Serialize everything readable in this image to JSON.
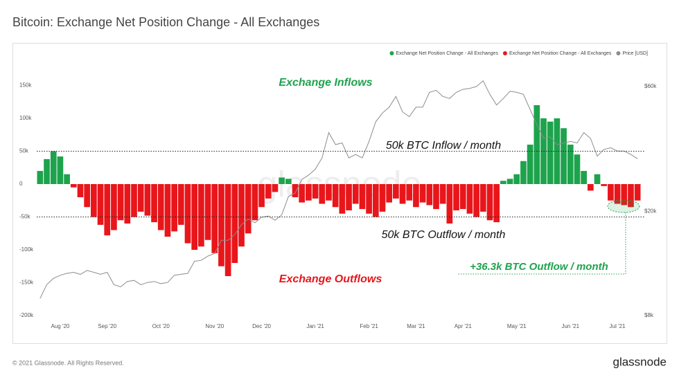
{
  "chart_data": {
    "type": "bar",
    "title": "Bitcoin: Exchange Net Position Change - All Exchanges",
    "watermark": "glassnode",
    "footer": "© 2021 Glassnode. All Rights Reserved.",
    "brand": "glassnode",
    "categories": [
      null,
      null,
      null,
      "Aug '20",
      null,
      null,
      null,
      null,
      null,
      null,
      "Sep '20",
      null,
      null,
      null,
      null,
      null,
      null,
      null,
      "Oct '20",
      null,
      null,
      null,
      null,
      null,
      null,
      null,
      "Nov '20",
      null,
      null,
      null,
      null,
      null,
      null,
      "Dec '20",
      null,
      null,
      null,
      null,
      null,
      null,
      null,
      "Jan '21",
      null,
      null,
      null,
      null,
      null,
      null,
      null,
      "Feb '21",
      null,
      null,
      null,
      null,
      null,
      null,
      "Mar '21",
      null,
      null,
      null,
      null,
      null,
      null,
      "Apr '21",
      null,
      null,
      null,
      null,
      null,
      null,
      null,
      "May '21",
      null,
      null,
      null,
      null,
      null,
      null,
      null,
      "Jun '21",
      null,
      null,
      null,
      null,
      null,
      null,
      "Jul '21",
      null,
      null,
      null
    ],
    "series": [
      {
        "name": "Exchange Net Position Change - All Exchanges",
        "color": "#1ea34d",
        "values": [
          20000,
          38000,
          50000,
          42000,
          15000,
          null,
          null,
          null,
          null,
          null,
          null,
          null,
          null,
          null,
          null,
          null,
          null,
          null,
          null,
          null,
          null,
          null,
          null,
          null,
          null,
          null,
          null,
          null,
          null,
          null,
          null,
          null,
          null,
          null,
          null,
          null,
          10000,
          8000,
          null,
          null,
          null,
          null,
          null,
          null,
          null,
          null,
          null,
          null,
          null,
          null,
          null,
          null,
          null,
          null,
          null,
          null,
          null,
          null,
          null,
          null,
          null,
          null,
          null,
          null,
          null,
          null,
          null,
          null,
          null,
          5000,
          8000,
          15000,
          35000,
          60000,
          120000,
          100000,
          95000,
          100000,
          85000,
          60000,
          45000,
          20000,
          null,
          15000,
          null,
          null,
          null,
          null,
          null,
          null
        ]
      },
      {
        "name": "Exchange Net Position Change - All Exchanges",
        "color": "#e8161b",
        "values": [
          null,
          null,
          null,
          null,
          null,
          -5000,
          -20000,
          -35000,
          -50000,
          -62000,
          -78000,
          -70000,
          -55000,
          -60000,
          -50000,
          -42000,
          -48000,
          -58000,
          -70000,
          -80000,
          -72000,
          -62000,
          -90000,
          -100000,
          -95000,
          -85000,
          -105000,
          -125000,
          -140000,
          -120000,
          -95000,
          -75000,
          -55000,
          -35000,
          -22000,
          -12000,
          null,
          null,
          -20000,
          -28000,
          -25000,
          -22000,
          -30000,
          -25000,
          -35000,
          -45000,
          -40000,
          -30000,
          -38000,
          -45000,
          -50000,
          -42000,
          -28000,
          -22000,
          -30000,
          -25000,
          -35000,
          -28000,
          -32000,
          -38000,
          -30000,
          -60000,
          -40000,
          -38000,
          -45000,
          -50000,
          -42000,
          -55000,
          -58000,
          null,
          null,
          null,
          null,
          null,
          null,
          null,
          null,
          null,
          null,
          null,
          null,
          null,
          -10000,
          null,
          -3000,
          -25000,
          -30000,
          -32000,
          -35000,
          -25000
        ]
      },
      {
        "name": "Price [USD]",
        "color": "#8c8c8c",
        "type": "line",
        "axis": "y2",
        "values": [
          9300,
          10500,
          11100,
          11400,
          11600,
          11700,
          11500,
          11900,
          11700,
          11500,
          11700,
          10500,
          10300,
          10800,
          10900,
          10500,
          10700,
          10800,
          10600,
          10700,
          11400,
          11500,
          11600,
          12900,
          13000,
          13500,
          13800,
          15500,
          15500,
          16300,
          17800,
          18700,
          18100,
          19000,
          19200,
          18500,
          19400,
          22800,
          23500,
          26500,
          27500,
          29000,
          32000,
          40000,
          36000,
          36500,
          32000,
          33000,
          32000,
          37000,
          44000,
          47500,
          50000,
          55000,
          48000,
          46000,
          50000,
          50000,
          57000,
          58000,
          55000,
          54000,
          57000,
          58500,
          59000,
          60000,
          63000,
          56000,
          51000,
          54000,
          57500,
          57000,
          56000,
          49000,
          43000,
          38000,
          38500,
          36000,
          36500,
          37000,
          36500,
          40000,
          38000,
          32500,
          34500,
          35000,
          34000,
          34000,
          33000,
          31800
        ]
      }
    ],
    "ylim": [
      -200000,
      180000
    ],
    "yticks": [
      {
        "value": 150000,
        "label": "150k"
      },
      {
        "value": 100000,
        "label": "100k"
      },
      {
        "value": 50000,
        "label": "50k"
      },
      0,
      {
        "value": -50000,
        "label": "-50k"
      },
      {
        "value": -100000,
        "label": "-100k"
      },
      {
        "value": -150000,
        "label": "-150k"
      },
      {
        "value": -200000,
        "label": "-200k"
      }
    ],
    "y2lim": [
      8000,
      72000
    ],
    "y2scale": "log",
    "y2ticks": [
      {
        "value": 60000,
        "label": "$60k"
      },
      {
        "value": 20000,
        "label": "$20k"
      },
      {
        "value": 8000,
        "label": "$8k"
      }
    ],
    "hlines": [
      50000,
      -50000
    ],
    "annotations": [
      {
        "text": "Exchange Inflows",
        "color": "#1ea34d"
      },
      {
        "text": "50k BTC Inflow / month",
        "color": "#111111"
      },
      {
        "text": "50k BTC Outflow / month",
        "color": "#111111"
      },
      {
        "text": "+36.3k BTC Outflow / month",
        "color": "#1ea34d"
      },
      {
        "text": "Exchange Outflows",
        "color": "#e8161b"
      }
    ],
    "legend": "top-right"
  }
}
